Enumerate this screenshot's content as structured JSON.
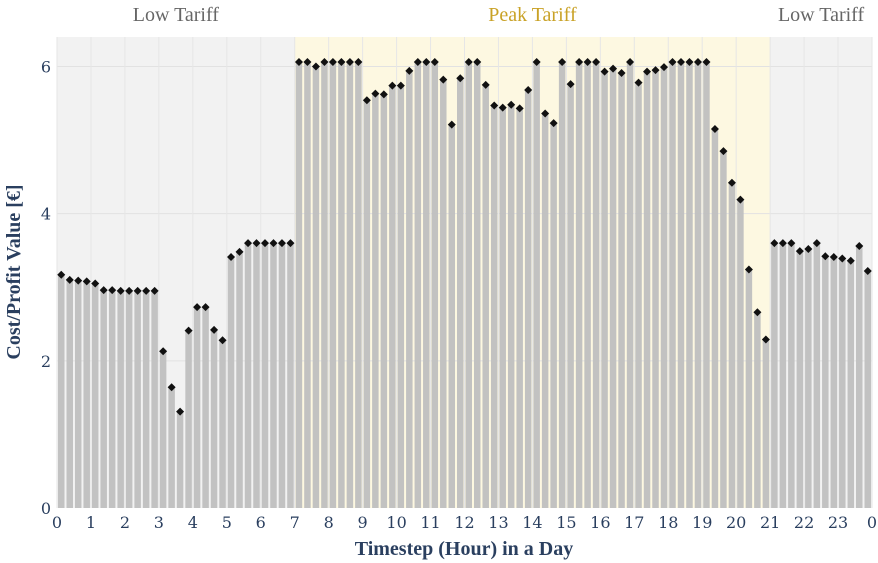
{
  "chart_data": {
    "type": "bar",
    "xlabel": "Timestep (Hour) in a Day",
    "ylabel": "Cost/Profit Value [€]",
    "ylim": [
      0,
      6.4
    ],
    "xlim": [
      0,
      96
    ],
    "y_ticks": [
      0,
      2,
      4,
      6
    ],
    "x_tick_labels": [
      "0",
      "1",
      "2",
      "3",
      "4",
      "5",
      "6",
      "7",
      "8",
      "9",
      "10",
      "11",
      "12",
      "13",
      "14",
      "15",
      "16",
      "17",
      "18",
      "19",
      "20",
      "21",
      "22",
      "23",
      "0"
    ],
    "grid": true,
    "bands": [
      {
        "label": "Low Tariff",
        "from_hour": 0,
        "to_hour": 7,
        "color": "#f2f2f2",
        "label_color": "#666666"
      },
      {
        "label": "Peak Tariff",
        "from_hour": 7,
        "to_hour": 21,
        "color": "#fdf8e1",
        "label_color": "#c9a227"
      },
      {
        "label": "Low Tariff",
        "from_hour": 21,
        "to_hour": 24,
        "color": "#f2f2f2",
        "label_color": "#666666"
      }
    ],
    "series": [
      {
        "kind": "bar",
        "color": "#bfbfbf",
        "values": [
          3.17,
          3.1,
          3.09,
          3.08,
          3.05,
          2.96,
          2.96,
          2.95,
          2.95,
          2.95,
          2.95,
          2.95,
          2.13,
          1.64,
          1.31,
          2.41,
          2.73,
          2.73,
          2.42,
          2.28,
          3.41,
          3.48,
          3.6,
          3.6,
          3.6,
          3.6,
          3.6,
          3.6,
          6.06,
          6.06,
          6.0,
          6.06,
          6.06,
          6.06,
          6.06,
          6.06,
          5.54,
          5.63,
          5.62,
          5.74,
          5.74,
          5.94,
          6.06,
          6.06,
          6.06,
          5.82,
          5.21,
          5.84,
          6.06,
          6.06,
          5.75,
          5.47,
          5.44,
          5.48,
          5.43,
          5.68,
          6.06,
          5.36,
          5.23,
          6.06,
          5.76,
          6.06,
          6.06,
          6.06,
          5.93,
          5.97,
          5.91,
          6.06,
          5.78,
          5.93,
          5.95,
          5.99,
          6.06,
          6.06,
          6.06,
          6.06,
          6.06,
          5.15,
          4.85,
          4.42,
          4.19,
          3.24,
          2.66,
          2.29,
          3.6,
          3.6,
          3.6,
          3.49,
          3.52,
          3.6,
          3.42,
          3.41,
          3.39,
          3.36,
          3.56,
          3.22
        ]
      },
      {
        "kind": "scatter",
        "marker": "diamond",
        "color": "#111111",
        "values": [
          3.17,
          3.1,
          3.09,
          3.08,
          3.05,
          2.96,
          2.96,
          2.95,
          2.95,
          2.95,
          2.95,
          2.95,
          2.13,
          1.64,
          1.31,
          2.41,
          2.73,
          2.73,
          2.42,
          2.28,
          3.41,
          3.48,
          3.6,
          3.6,
          3.6,
          3.6,
          3.6,
          3.6,
          6.06,
          6.06,
          6.0,
          6.06,
          6.06,
          6.06,
          6.06,
          6.06,
          5.54,
          5.63,
          5.62,
          5.74,
          5.74,
          5.94,
          6.06,
          6.06,
          6.06,
          5.82,
          5.21,
          5.84,
          6.06,
          6.06,
          5.75,
          5.47,
          5.44,
          5.48,
          5.43,
          5.68,
          6.06,
          5.36,
          5.23,
          6.06,
          5.76,
          6.06,
          6.06,
          6.06,
          5.93,
          5.97,
          5.91,
          6.06,
          5.78,
          5.93,
          5.95,
          5.99,
          6.06,
          6.06,
          6.06,
          6.06,
          6.06,
          5.15,
          4.85,
          4.42,
          4.19,
          3.24,
          2.66,
          2.29,
          3.6,
          3.6,
          3.6,
          3.49,
          3.52,
          3.6,
          3.42,
          3.41,
          3.39,
          3.36,
          3.56,
          3.22
        ]
      }
    ]
  }
}
